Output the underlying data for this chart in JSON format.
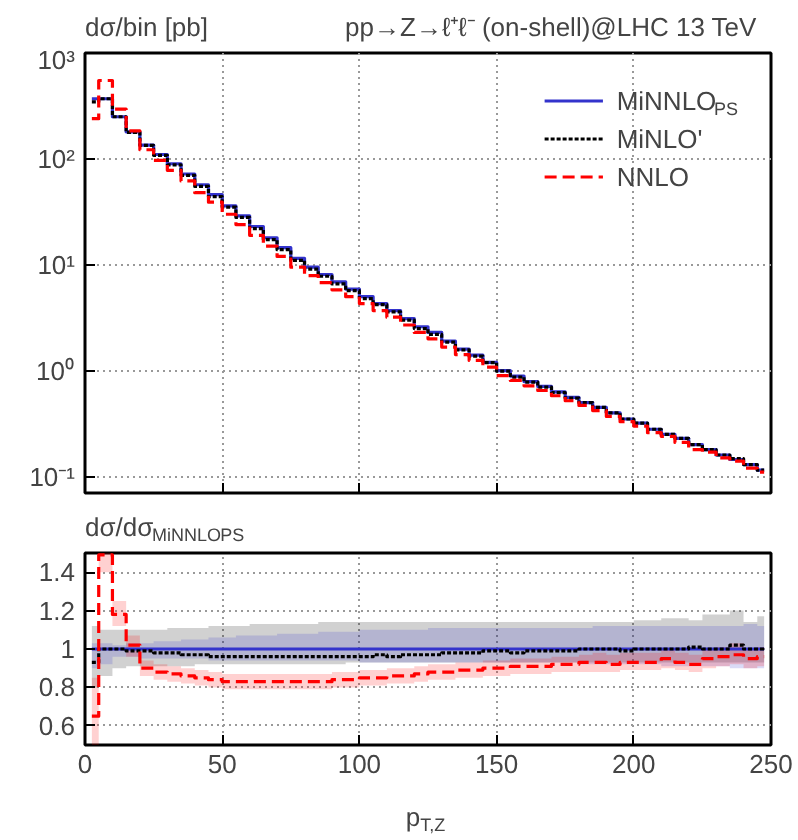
{
  "chart_data": [
    {
      "type": "step",
      "title": "pp→Z→ℓ⁺ℓ⁻ (on-shell)@LHC 13 TeV",
      "ylabel": "dσ/bin [pb]",
      "log": "y",
      "grid": true,
      "legend": "top right",
      "tick_labels": "y",
      "x": [
        2.5,
        7.5,
        12.5,
        17.5,
        22.5,
        27.5,
        32.5,
        37.5,
        42.5,
        47.5,
        52.5,
        57.5,
        62.5,
        67.5,
        72.5,
        77.5,
        82.5,
        87.5,
        92.5,
        97.5,
        102.5,
        107.5,
        112.5,
        117.5,
        122.5,
        127.5,
        132.5,
        137.5,
        142.5,
        147.5,
        152.5,
        157.5,
        162.5,
        167.5,
        172.5,
        177.5,
        182.5,
        187.5,
        192.5,
        197.5,
        202.5,
        207.5,
        212.5,
        217.5,
        222.5,
        227.5,
        232.5,
        237.5,
        242.5,
        247.5
      ],
      "xlim": [
        0,
        250
      ],
      "xticks": [
        0,
        50,
        100,
        150,
        200,
        250
      ],
      "ylim": [
        0.07,
        1000
      ],
      "yticks": [
        {
          "value": 0.1,
          "label": "10⁻¹"
        },
        {
          "value": 1,
          "label": "10⁰"
        },
        {
          "value": 10,
          "label": "10¹"
        },
        {
          "value": 100,
          "label": "10²"
        },
        {
          "value": 1000,
          "label": "10³"
        }
      ],
      "series": [
        {
          "name": "MiNNLO$_{PS}$",
          "color": "#3333cc",
          "line_style": "solid",
          "values": [
            370,
            370,
            250,
            180,
            135,
            110,
            90,
            72,
            57,
            46,
            36,
            29,
            23,
            18,
            14.5,
            11.5,
            9.5,
            8.1,
            6.9,
            5.9,
            5.0,
            4.3,
            3.7,
            3.1,
            2.6,
            2.3,
            1.9,
            1.6,
            1.4,
            1.2,
            1.0,
            0.89,
            0.79,
            0.71,
            0.63,
            0.56,
            0.5,
            0.45,
            0.4,
            0.35,
            0.32,
            0.28,
            0.25,
            0.23,
            0.2,
            0.18,
            0.16,
            0.145,
            0.13,
            0.115
          ]
        },
        {
          "name": "MiNLO'",
          "color": "#000000",
          "line_style": "dotted",
          "values": [
            345,
            370,
            250,
            178,
            134,
            108,
            88,
            70,
            55,
            44,
            35,
            28,
            22,
            17.3,
            13.9,
            11,
            9.1,
            7.8,
            6.6,
            5.7,
            4.8,
            4.2,
            3.6,
            3.0,
            2.5,
            2.2,
            1.86,
            1.57,
            1.37,
            1.19,
            0.99,
            0.87,
            0.78,
            0.7,
            0.62,
            0.55,
            0.5,
            0.45,
            0.4,
            0.35,
            0.32,
            0.28,
            0.25,
            0.23,
            0.2,
            0.18,
            0.16,
            0.148,
            0.13,
            0.115
          ]
        },
        {
          "name": "NNLO",
          "color": "#ff0000",
          "line_style": "dashed",
          "values": [
            240,
            550,
            295,
            184,
            122,
            97,
            78,
            62,
            48,
            39,
            30,
            24,
            19,
            15,
            12,
            9.5,
            7.9,
            6.8,
            5.8,
            5.0,
            4.3,
            3.7,
            3.2,
            2.7,
            2.3,
            2.0,
            1.67,
            1.42,
            1.25,
            1.08,
            0.9,
            0.81,
            0.72,
            0.65,
            0.58,
            0.52,
            0.47,
            0.42,
            0.37,
            0.33,
            0.3,
            0.26,
            0.24,
            0.21,
            0.18,
            0.17,
            0.15,
            0.14,
            0.12,
            0.11
          ]
        }
      ]
    },
    {
      "type": "step",
      "ylabel": "dσ/dσ$_{MiNNLO}$$_{PS}$",
      "xlabel": "p$_{T,Z}$",
      "grid": true,
      "x": [
        2.5,
        7.5,
        12.5,
        17.5,
        22.5,
        27.5,
        32.5,
        37.5,
        42.5,
        47.5,
        52.5,
        57.5,
        62.5,
        67.5,
        72.5,
        77.5,
        82.5,
        87.5,
        92.5,
        97.5,
        102.5,
        107.5,
        112.5,
        117.5,
        122.5,
        127.5,
        132.5,
        137.5,
        142.5,
        147.5,
        152.5,
        157.5,
        162.5,
        167.5,
        172.5,
        177.5,
        182.5,
        187.5,
        192.5,
        197.5,
        202.5,
        207.5,
        212.5,
        217.5,
        222.5,
        227.5,
        232.5,
        237.5,
        242.5,
        247.5
      ],
      "xlim": [
        0,
        250
      ],
      "xticks": [
        0,
        50,
        100,
        150,
        200,
        250
      ],
      "ylim": [
        0.5,
        1.5
      ],
      "yticks": [
        0.6,
        0.8,
        1,
        1.2,
        1.4
      ],
      "series": [
        {
          "color": "#000000",
          "line_style": "dotted",
          "values": [
            0.93,
            1.0,
            1.0,
            0.99,
            0.99,
            0.98,
            0.98,
            0.97,
            0.97,
            0.96,
            0.96,
            0.96,
            0.96,
            0.96,
            0.96,
            0.96,
            0.96,
            0.96,
            0.96,
            0.96,
            0.96,
            0.97,
            0.96,
            0.97,
            0.97,
            0.97,
            0.98,
            0.98,
            0.98,
            0.99,
            0.99,
            0.98,
            0.99,
            0.99,
            0.99,
            0.99,
            1.0,
            1.0,
            1.0,
            0.99,
            1.0,
            1.0,
            1.0,
            1.0,
            1.01,
            1.0,
            1.0,
            1.02,
            1.0,
            1.0
          ],
          "lower": [
            0.8,
            0.86,
            0.9,
            0.91,
            0.91,
            0.91,
            0.91,
            0.91,
            0.92,
            0.92,
            0.92,
            0.92,
            0.92,
            0.92,
            0.92,
            0.92,
            0.92,
            0.92,
            0.92,
            0.93,
            0.93,
            0.93,
            0.93,
            0.93,
            0.93,
            0.93,
            0.93,
            0.93,
            0.93,
            0.93,
            0.93,
            0.93,
            0.93,
            0.93,
            0.93,
            0.93,
            0.93,
            0.93,
            0.93,
            0.93,
            0.93,
            0.93,
            0.93,
            0.93,
            0.93,
            0.93,
            0.93,
            0.93,
            0.93,
            0.93
          ],
          "upper": [
            1.12,
            1.1,
            1.1,
            1.1,
            1.1,
            1.1,
            1.11,
            1.11,
            1.11,
            1.12,
            1.12,
            1.12,
            1.13,
            1.13,
            1.13,
            1.13,
            1.13,
            1.14,
            1.14,
            1.14,
            1.14,
            1.14,
            1.14,
            1.14,
            1.14,
            1.14,
            1.14,
            1.14,
            1.14,
            1.14,
            1.14,
            1.14,
            1.14,
            1.14,
            1.14,
            1.14,
            1.14,
            1.14,
            1.14,
            1.14,
            1.15,
            1.15,
            1.16,
            1.16,
            1.15,
            1.18,
            1.18,
            1.2,
            1.14,
            1.17
          ]
        },
        {
          "color": "#3333cc",
          "line_style": "solid",
          "values": [
            1,
            1,
            1,
            1,
            1,
            1,
            1,
            1,
            1,
            1,
            1,
            1,
            1,
            1,
            1,
            1,
            1,
            1,
            1,
            1,
            1,
            1,
            1,
            1,
            1,
            1,
            1,
            1,
            1,
            1,
            1,
            1,
            1,
            1,
            1,
            1,
            1,
            1,
            1,
            1,
            1,
            1,
            1,
            1,
            1,
            1,
            1,
            1,
            1,
            1
          ],
          "lower": [
            0.9,
            0.92,
            0.96,
            0.96,
            0.95,
            0.95,
            0.95,
            0.95,
            0.95,
            0.94,
            0.94,
            0.94,
            0.94,
            0.94,
            0.94,
            0.94,
            0.94,
            0.94,
            0.94,
            0.94,
            0.93,
            0.93,
            0.93,
            0.93,
            0.93,
            0.93,
            0.93,
            0.93,
            0.93,
            0.93,
            0.93,
            0.93,
            0.93,
            0.93,
            0.93,
            0.93,
            0.92,
            0.92,
            0.92,
            0.92,
            0.92,
            0.92,
            0.91,
            0.91,
            0.91,
            0.91,
            0.91,
            0.9,
            0.9,
            0.9
          ],
          "upper": [
            1.03,
            1.03,
            1.02,
            1.03,
            1.03,
            1.04,
            1.04,
            1.05,
            1.05,
            1.06,
            1.06,
            1.07,
            1.07,
            1.07,
            1.08,
            1.08,
            1.08,
            1.09,
            1.09,
            1.09,
            1.1,
            1.1,
            1.1,
            1.1,
            1.1,
            1.11,
            1.11,
            1.11,
            1.11,
            1.11,
            1.11,
            1.11,
            1.11,
            1.11,
            1.11,
            1.11,
            1.11,
            1.12,
            1.12,
            1.12,
            1.12,
            1.12,
            1.12,
            1.12,
            1.12,
            1.12,
            1.12,
            1.12,
            1.13,
            1.12
          ]
        },
        {
          "color": "#ff0000",
          "line_style": "dashed",
          "values": [
            0.65,
            1.49,
            1.18,
            1.02,
            0.9,
            0.88,
            0.87,
            0.86,
            0.85,
            0.84,
            0.83,
            0.83,
            0.83,
            0.83,
            0.83,
            0.83,
            0.83,
            0.83,
            0.84,
            0.84,
            0.85,
            0.85,
            0.86,
            0.86,
            0.87,
            0.88,
            0.88,
            0.89,
            0.89,
            0.9,
            0.9,
            0.91,
            0.91,
            0.91,
            0.92,
            0.92,
            0.93,
            0.93,
            0.92,
            0.93,
            0.93,
            0.93,
            0.95,
            0.93,
            0.92,
            0.95,
            0.96,
            0.97,
            0.95,
            0.96
          ],
          "lower": [
            0.5,
            1.4,
            1.12,
            0.96,
            0.86,
            0.84,
            0.83,
            0.82,
            0.81,
            0.8,
            0.79,
            0.79,
            0.79,
            0.79,
            0.79,
            0.79,
            0.79,
            0.79,
            0.8,
            0.8,
            0.81,
            0.81,
            0.82,
            0.82,
            0.83,
            0.84,
            0.84,
            0.85,
            0.85,
            0.86,
            0.86,
            0.87,
            0.87,
            0.87,
            0.88,
            0.88,
            0.88,
            0.88,
            0.88,
            0.89,
            0.89,
            0.89,
            0.9,
            0.89,
            0.88,
            0.9,
            0.91,
            0.92,
            0.9,
            0.91
          ],
          "upper": [
            0.85,
            1.5,
            1.25,
            1.07,
            0.94,
            0.92,
            0.91,
            0.9,
            0.89,
            0.88,
            0.87,
            0.87,
            0.87,
            0.87,
            0.87,
            0.87,
            0.87,
            0.87,
            0.88,
            0.88,
            0.89,
            0.89,
            0.9,
            0.9,
            0.91,
            0.92,
            0.92,
            0.93,
            0.93,
            0.94,
            0.94,
            0.95,
            0.95,
            0.95,
            0.96,
            0.96,
            0.97,
            0.98,
            0.97,
            0.98,
            0.98,
            0.98,
            1.0,
            0.98,
            0.97,
            1.0,
            1.01,
            1.03,
            1.0,
            1.01
          ]
        }
      ]
    }
  ]
}
